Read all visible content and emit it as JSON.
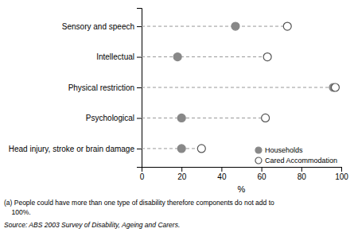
{
  "chart_data": {
    "type": "dot",
    "categories": [
      "Head injury, stroke or brain damage",
      "Psychological",
      "Physical restriction",
      "Intellectual",
      "Sensory and speech"
    ],
    "series": [
      {
        "name": "Households",
        "color": "#888888",
        "values": [
          20,
          20,
          96,
          18,
          47
        ]
      },
      {
        "name": "Cared Accommodation",
        "color": "#ffffff",
        "values": [
          30,
          62,
          97,
          63,
          73
        ]
      }
    ],
    "orientation": "horizontal",
    "x_label": "%",
    "xlim": [
      0,
      100
    ],
    "xticks": [
      0,
      20,
      40,
      60,
      80,
      100
    ],
    "grid": false,
    "legend": "lower right",
    "annotations": [
      "(a) People could have more than one type of disability therefore components do not add to",
      "    100%.",
      "Source: ABS 2003 Survey of Disability, Ageing and Carers."
    ]
  }
}
